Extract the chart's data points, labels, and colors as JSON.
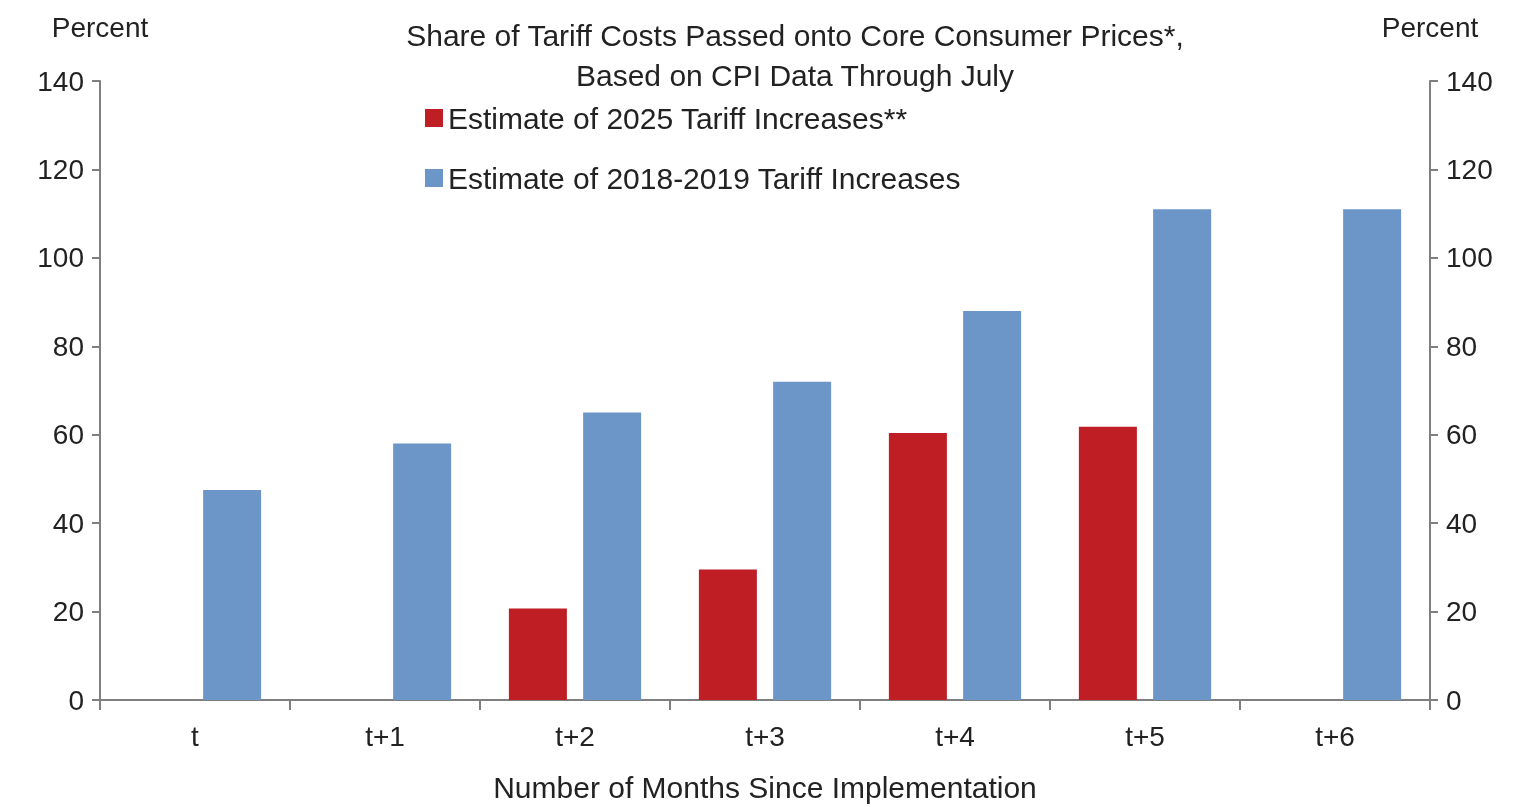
{
  "chart_data": {
    "type": "bar",
    "title": "Share of Tariff Costs Passed onto Core Consumer Prices*,\nBased on CPI Data Through July",
    "xlabel": "Number of Months Since Implementation",
    "ylabel": "Percent",
    "y2label": "Percent",
    "categories": [
      "t",
      "t+1",
      "t+2",
      "t+3",
      "t+4",
      "t+5",
      "t+6"
    ],
    "series": [
      {
        "name": "Estimate of 2025 Tariff Increases**",
        "color": "#be1e24",
        "values": [
          null,
          null,
          20.7,
          29.5,
          60.4,
          61.8,
          null
        ]
      },
      {
        "name": "Estimate of 2018-2019 Tariff Increases",
        "color": "#6b96c7",
        "values": [
          47.5,
          58,
          65,
          72,
          88,
          111,
          111
        ]
      }
    ],
    "ylim": [
      0,
      140
    ],
    "yticks": [
      0,
      20,
      40,
      60,
      80,
      100,
      120,
      140
    ],
    "y2lim": [
      0,
      140
    ],
    "y2ticks": [
      0,
      20,
      40,
      60,
      80,
      100,
      120,
      140
    ],
    "grid": false,
    "legend": "top"
  }
}
